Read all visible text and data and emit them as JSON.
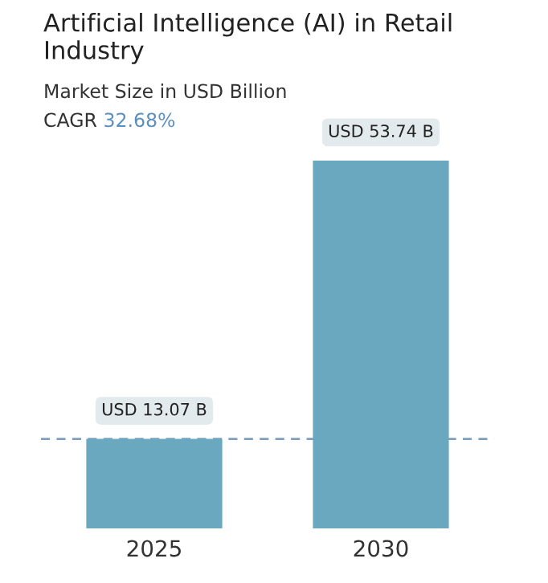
{
  "chart_data": {
    "type": "bar",
    "title": "Artificial Intelligence (AI) in Retail Industry",
    "subtitle": "Market Size in USD Billion",
    "annotations": [
      "CAGR",
      "32.68%"
    ],
    "categories": [
      "2025",
      "2030"
    ],
    "values": [
      13.07,
      53.74
    ],
    "value_labels": [
      "USD 13.07 B",
      "USD 53.74 B"
    ],
    "color": "#6aa8c0",
    "ref_lines": [
      {
        "axis": "y",
        "value": 13.07,
        "color": "#7f9fbf",
        "line_style": "dashed"
      }
    ],
    "grid": false,
    "legend": false
  }
}
